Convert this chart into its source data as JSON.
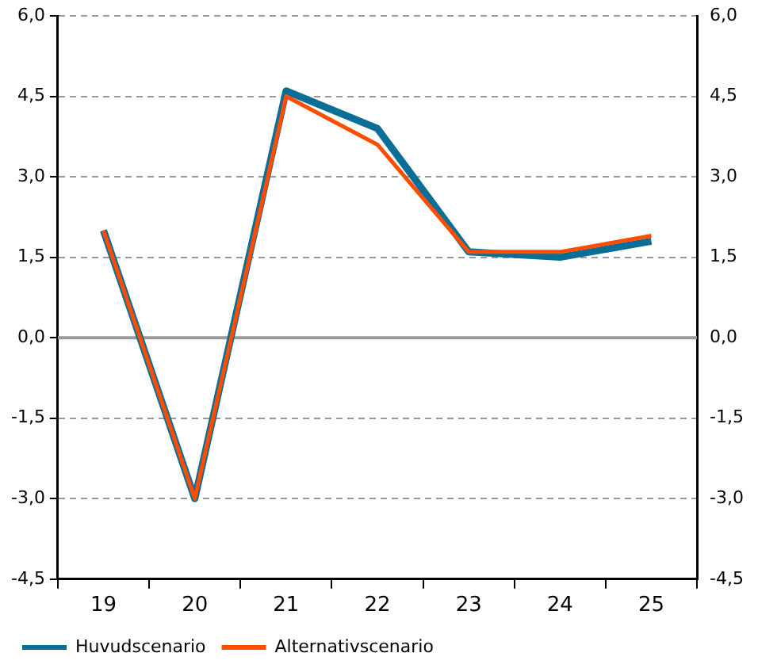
{
  "chart_data": {
    "type": "line",
    "categories": [
      "19",
      "20",
      "21",
      "22",
      "23",
      "24",
      "25"
    ],
    "series": [
      {
        "name": "Huvudscenario",
        "color": "#0a6e96",
        "values": [
          2.0,
          -3.0,
          4.6,
          3.9,
          1.6,
          1.5,
          1.8
        ]
      },
      {
        "name": "Alternativscenario",
        "color": "#ff4d00",
        "values": [
          2.0,
          -3.0,
          4.5,
          3.6,
          1.6,
          1.6,
          1.9
        ]
      }
    ],
    "ylim": [
      -4.5,
      6.0
    ],
    "yticks": [
      {
        "value": -4.5,
        "label": "-4,5"
      },
      {
        "value": -3,
        "label": "-3,0"
      },
      {
        "value": -1.5,
        "label": "-1,5"
      },
      {
        "value": 0,
        "label": "0,0"
      },
      {
        "value": 1.5,
        "label": "1,5"
      },
      {
        "value": 3,
        "label": "3,0"
      },
      {
        "value": 4.5,
        "label": "4,5"
      },
      {
        "value": 6,
        "label": "6,0"
      }
    ],
    "y2lim": [
      -4.5,
      6.0
    ],
    "y2ticks": [
      {
        "value": -4.5,
        "label": "-4,5"
      },
      {
        "value": -3,
        "label": "-3,0"
      },
      {
        "value": -1.5,
        "label": "-1,5"
      },
      {
        "value": 0,
        "label": "0,0"
      },
      {
        "value": 1.5,
        "label": "1,5"
      },
      {
        "value": 3,
        "label": "3,0"
      },
      {
        "value": 4.5,
        "label": "4,5"
      },
      {
        "value": 6,
        "label": "6,0"
      }
    ],
    "ref_lines": [
      {
        "axis": "y",
        "value": 0,
        "color": "#999999"
      }
    ],
    "grid": "y",
    "legend": "bottom",
    "marker": "none",
    "line_style": "solid"
  }
}
